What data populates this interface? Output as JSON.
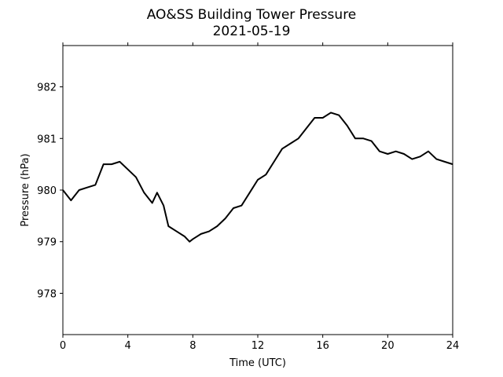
{
  "chart_data": {
    "type": "line",
    "title": "AO&SS Building Tower Pressure",
    "subtitle": "2021-05-19",
    "xlabel": "Time (UTC)",
    "ylabel": "Pressure (hPa)",
    "xlim": [
      0,
      24
    ],
    "ylim": [
      977.2,
      982.8
    ],
    "xticks": [
      0,
      4,
      8,
      12,
      16,
      20,
      24
    ],
    "yticks": [
      978,
      979,
      980,
      981,
      982
    ],
    "grid": false,
    "line_color": "#000000",
    "series": [
      {
        "x": [
          0.0,
          0.5,
          1.0,
          1.5,
          2.0,
          2.5,
          3.0,
          3.5,
          4.0,
          4.5,
          5.0,
          5.5,
          5.8,
          6.2,
          6.5,
          7.0,
          7.5,
          7.8,
          8.0,
          8.5,
          9.0,
          9.5,
          10.0,
          10.5,
          11.0,
          11.5,
          12.0,
          12.5,
          13.0,
          13.5,
          14.0,
          14.5,
          15.0,
          15.5,
          16.0,
          16.5,
          17.0,
          17.5,
          18.0,
          18.5,
          19.0,
          19.5,
          20.0,
          20.5,
          21.0,
          21.5,
          22.0,
          22.5,
          23.0,
          23.5,
          24.0
        ],
        "y": [
          980.0,
          979.8,
          980.0,
          980.05,
          980.1,
          980.5,
          980.5,
          980.55,
          980.4,
          980.25,
          979.95,
          979.75,
          979.95,
          979.7,
          979.3,
          979.2,
          979.1,
          979.0,
          979.05,
          979.15,
          979.2,
          979.3,
          979.45,
          979.65,
          979.7,
          979.95,
          980.2,
          980.3,
          980.55,
          980.8,
          980.9,
          981.0,
          981.2,
          981.4,
          981.4,
          981.5,
          981.45,
          981.25,
          981.0,
          981.0,
          980.95,
          980.75,
          980.7,
          980.75,
          980.7,
          980.6,
          980.65,
          980.75,
          980.6,
          980.55,
          980.5
        ]
      }
    ]
  }
}
